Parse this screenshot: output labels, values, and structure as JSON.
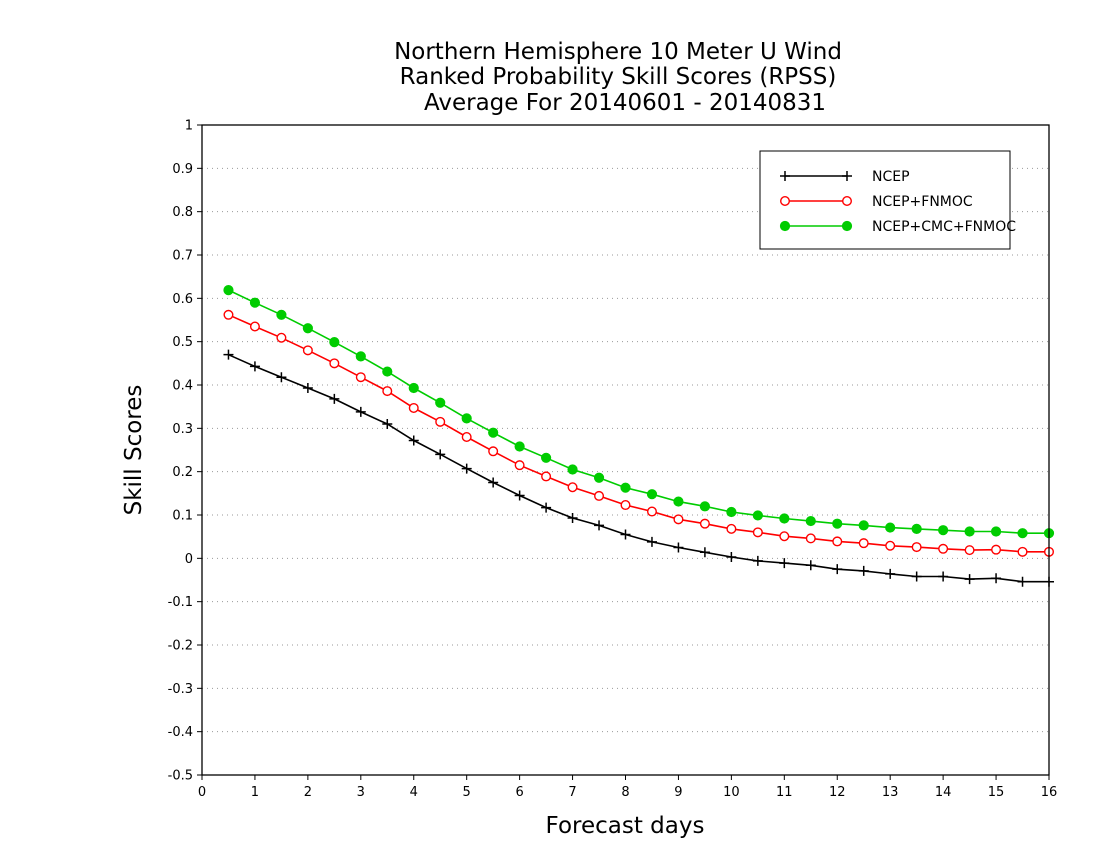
{
  "chart_data": {
    "type": "line",
    "title_lines": [
      "Northern Hemisphere 10 Meter U Wind",
      "Ranked Probability Skill Scores (RPSS)",
      "Average For 20140601 - 20140831"
    ],
    "xlabel": "Forecast days",
    "ylabel": "Skill Scores",
    "xlim": [
      0,
      16
    ],
    "ylim": [
      -0.5,
      1
    ],
    "x_ticks": [
      0,
      1,
      2,
      3,
      4,
      5,
      6,
      7,
      8,
      9,
      10,
      11,
      12,
      13,
      14,
      15,
      16
    ],
    "y_ticks": [
      -0.5,
      -0.4,
      -0.3,
      -0.2,
      -0.1,
      0,
      0.1,
      0.2,
      0.3,
      0.4,
      0.5,
      0.6,
      0.7,
      0.8,
      0.9,
      1
    ],
    "y_tick_labels": [
      "-0.5",
      "-0.4",
      "-0.3",
      "-0.2",
      "-0.1",
      "0",
      "0.1",
      "0.2",
      "0.3",
      "0.4",
      "0.5",
      "0.6",
      "0.7",
      "0.8",
      "0.9",
      "1"
    ],
    "grid": "horizontal dotted",
    "legend_position": "top-right",
    "x": [
      0.5,
      1,
      1.5,
      2,
      2.5,
      3,
      3.5,
      4,
      4.5,
      5,
      5.5,
      6,
      6.5,
      7,
      7.5,
      8,
      8.5,
      9,
      9.5,
      10,
      10.5,
      11,
      11.5,
      12,
      12.5,
      13,
      13.5,
      14,
      14.5,
      15,
      15.5,
      16
    ],
    "series": [
      {
        "name": "NCEP",
        "color": "#000000",
        "marker": "plus",
        "values": [
          0.47,
          0.443,
          0.418,
          0.393,
          0.368,
          0.338,
          0.31,
          0.272,
          0.24,
          0.207,
          0.175,
          0.145,
          0.117,
          0.093,
          0.076,
          0.055,
          0.038,
          0.025,
          0.014,
          0.003,
          -0.006,
          -0.011,
          -0.016,
          -0.025,
          -0.029,
          -0.036,
          -0.042,
          -0.042,
          -0.048,
          -0.046,
          -0.054,
          -0.054
        ]
      },
      {
        "name": "NCEP+FNMOC",
        "color": "#ff0000",
        "marker": "open-circle",
        "values": [
          0.562,
          0.535,
          0.509,
          0.48,
          0.45,
          0.418,
          0.386,
          0.347,
          0.315,
          0.28,
          0.247,
          0.215,
          0.189,
          0.164,
          0.144,
          0.123,
          0.108,
          0.09,
          0.08,
          0.068,
          0.06,
          0.051,
          0.046,
          0.039,
          0.035,
          0.029,
          0.026,
          0.022,
          0.019,
          0.02,
          0.015,
          0.015
        ]
      },
      {
        "name": "NCEP+CMC+FNMOC",
        "color": "#00cc00",
        "marker": "filled-circle",
        "values": [
          0.619,
          0.59,
          0.562,
          0.531,
          0.499,
          0.466,
          0.431,
          0.393,
          0.359,
          0.323,
          0.29,
          0.258,
          0.232,
          0.205,
          0.186,
          0.163,
          0.148,
          0.131,
          0.12,
          0.107,
          0.099,
          0.092,
          0.086,
          0.08,
          0.076,
          0.071,
          0.068,
          0.065,
          0.062,
          0.062,
          0.058,
          0.058
        ]
      }
    ]
  }
}
